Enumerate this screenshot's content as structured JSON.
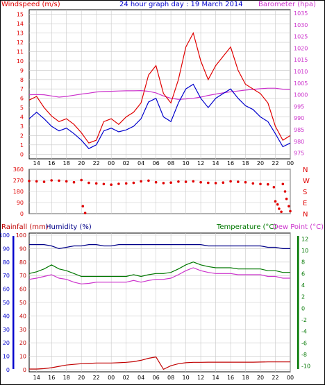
{
  "colors": {
    "windspeed": "#e00000",
    "gust": "#e00000",
    "avgwind": "#0000cc",
    "barometer": "#cc33cc",
    "winddir": "#e00000",
    "rainfall": "#c00000",
    "humidity": "#000088",
    "temperature": "#007700",
    "dewpoint": "#cc33cc",
    "grid": "#c8c8c8",
    "frame": "#000000"
  },
  "chart_data": [
    {
      "type": "line",
      "id": "wind",
      "title": "24 hour graph day : 19 March 2014",
      "left_label": "Windspeed (m/s)",
      "right_label": "Barometer (hpa)",
      "x_ticks": [
        "14",
        "16",
        "18",
        "20",
        "22",
        "00",
        "02",
        "04",
        "06",
        "08",
        "10",
        "12",
        "14",
        "16",
        "18",
        "20",
        "22",
        "00"
      ],
      "y_left_ticks": [
        "0",
        "1",
        "2",
        "3",
        "4",
        "5",
        "6",
        "7",
        "8",
        "9",
        "10",
        "11",
        "12",
        "13",
        "14",
        "15"
      ],
      "y_left_range": [
        -0.5,
        15.5
      ],
      "y_right_ticks": [
        "975",
        "980",
        "985",
        "990",
        "995",
        "1000",
        "1005",
        "1010",
        "1015",
        "1020",
        "1025",
        "1030",
        "1035"
      ],
      "y_right_range": [
        972.5,
        1036.5
      ],
      "hours": [
        13,
        14,
        15,
        16,
        17,
        18,
        19,
        20,
        21,
        22,
        23,
        24,
        25,
        26,
        27,
        28,
        29,
        30,
        31,
        32,
        33,
        34,
        35,
        36,
        37,
        38,
        39,
        40,
        41,
        42,
        43,
        44,
        45,
        46,
        47,
        48
      ],
      "series": [
        {
          "key": "gust",
          "values": [
            5.8,
            6.2,
            5.0,
            4.1,
            3.5,
            3.8,
            3.2,
            2.3,
            1.2,
            1.5,
            3.5,
            3.8,
            3.2,
            4.0,
            4.5,
            5.5,
            8.5,
            9.5,
            6.5,
            5.5,
            8.0,
            11.5,
            13.0,
            10.0,
            8.0,
            9.5,
            10.5,
            11.5,
            9.0,
            7.5,
            7.0,
            6.5,
            5.5,
            3.0,
            1.5,
            2.0
          ]
        },
        {
          "key": "avgwind",
          "values": [
            3.8,
            4.5,
            3.8,
            3.0,
            2.5,
            2.8,
            2.2,
            1.5,
            0.6,
            1.0,
            2.5,
            2.8,
            2.4,
            2.6,
            3.0,
            3.8,
            5.6,
            6.0,
            4.0,
            3.5,
            5.5,
            7.0,
            7.5,
            6.0,
            5.0,
            6.0,
            6.5,
            7.0,
            6.0,
            5.2,
            4.8,
            4.0,
            3.5,
            2.2,
            0.8,
            1.2
          ]
        },
        {
          "key": "barometer",
          "values": [
            1000.0,
            1000.1,
            1000.0,
            999.5,
            999.0,
            999.3,
            999.8,
            1000.3,
            1000.7,
            1001.2,
            1001.4,
            1001.5,
            1001.6,
            1001.7,
            1001.7,
            1001.8,
            1001.5,
            1000.8,
            999.5,
            998.5,
            998.0,
            998.2,
            998.5,
            999.0,
            999.7,
            1000.3,
            1000.8,
            1001.3,
            1001.6,
            1002.0,
            1002.3,
            1002.6,
            1002.8,
            1002.8,
            1002.4,
            1002.3
          ]
        }
      ]
    },
    {
      "type": "scatter",
      "id": "direction",
      "y_left_ticks": [
        "360",
        "270",
        "180",
        "90",
        "0"
      ],
      "y_right_ticks": [
        "N",
        "W",
        "S",
        "E",
        "N"
      ],
      "y_range": [
        0,
        360
      ],
      "hours": [
        13,
        14,
        15,
        16,
        17,
        18,
        19,
        20,
        20.2,
        20.5,
        21,
        22,
        23,
        24,
        25,
        26,
        27,
        28,
        29,
        30,
        31,
        32,
        33,
        34,
        35,
        36,
        37,
        38,
        39,
        40,
        41,
        42,
        43,
        44,
        45,
        45.8,
        46.0,
        46.3,
        46.5,
        46.8,
        47.0,
        47.3,
        47.5,
        47.8,
        48
      ],
      "values": [
        265,
        262,
        258,
        270,
        268,
        262,
        255,
        272,
        60,
        5,
        250,
        245,
        240,
        235,
        242,
        245,
        250,
        262,
        268,
        255,
        248,
        252,
        260,
        258,
        262,
        255,
        250,
        248,
        252,
        262,
        258,
        255,
        245,
        240,
        238,
        215,
        100,
        75,
        40,
        15,
        240,
        180,
        120,
        60,
        20
      ]
    },
    {
      "type": "line",
      "id": "bottom",
      "left_label_1": "Rainfall (mm)",
      "left_label_2": "Humidity (%)",
      "right_label_1": "Temperature (°C)",
      "right_label_2": "Dew Point (°C)",
      "y_left_ticks": [
        "0",
        "10",
        "20",
        "30",
        "40",
        "50",
        "60",
        "70",
        "80",
        "90",
        "100"
      ],
      "y_left_range": [
        0,
        100
      ],
      "y_right_ticks": [
        "-10",
        "-8",
        "-6",
        "-4",
        "-2",
        "0",
        "2",
        "4",
        "6",
        "8",
        "10",
        "12"
      ],
      "y_right_range": [
        -11,
        13
      ],
      "hours": [
        13,
        14,
        15,
        16,
        17,
        18,
        19,
        20,
        21,
        22,
        23,
        24,
        25,
        26,
        27,
        28,
        29,
        30,
        31,
        32,
        33,
        34,
        35,
        36,
        37,
        38,
        39,
        40,
        41,
        42,
        43,
        44,
        45,
        46,
        47,
        48
      ],
      "series": [
        {
          "key": "rainfall",
          "axis": "left",
          "values": [
            0.5,
            0.5,
            0.8,
            1.5,
            2.5,
            3.5,
            4.0,
            4.5,
            4.7,
            5.0,
            5.0,
            5.0,
            5.2,
            5.5,
            6.0,
            7.0,
            8.5,
            9.5,
            0.3,
            3.0,
            4.5,
            5.2,
            5.5,
            5.5,
            5.6,
            5.6,
            5.6,
            5.6,
            5.6,
            5.6,
            5.6,
            5.7,
            5.8,
            5.8,
            5.8,
            5.8
          ]
        },
        {
          "key": "humidity",
          "axis": "left",
          "values": [
            93,
            93,
            93,
            92,
            90,
            91,
            92,
            92,
            93,
            93,
            92,
            92,
            93,
            93,
            93,
            93,
            93,
            93,
            93,
            93,
            93,
            93,
            93,
            93,
            92,
            92,
            92,
            92,
            92,
            92,
            92,
            92,
            91,
            91,
            90,
            90
          ]
        },
        {
          "key": "temperature",
          "axis": "right",
          "values": [
            6.0,
            6.3,
            6.8,
            7.5,
            6.8,
            6.5,
            6.0,
            5.5,
            5.5,
            5.5,
            5.5,
            5.5,
            5.5,
            5.5,
            5.8,
            5.5,
            5.8,
            6.0,
            6.0,
            6.2,
            6.8,
            7.5,
            8.0,
            7.5,
            7.2,
            7.0,
            7.0,
            7.0,
            6.8,
            6.8,
            6.8,
            6.8,
            6.5,
            6.5,
            6.2,
            6.2
          ]
        },
        {
          "key": "dewpoint",
          "axis": "right",
          "values": [
            5.0,
            5.2,
            5.5,
            5.8,
            5.2,
            5.0,
            4.5,
            4.2,
            4.3,
            4.5,
            4.5,
            4.5,
            4.5,
            4.5,
            4.8,
            4.5,
            4.8,
            5.0,
            5.0,
            5.2,
            5.8,
            6.5,
            7.0,
            6.5,
            6.2,
            6.0,
            6.0,
            6.0,
            5.8,
            5.8,
            5.8,
            5.8,
            5.5,
            5.5,
            5.2,
            5.2
          ]
        }
      ]
    }
  ]
}
